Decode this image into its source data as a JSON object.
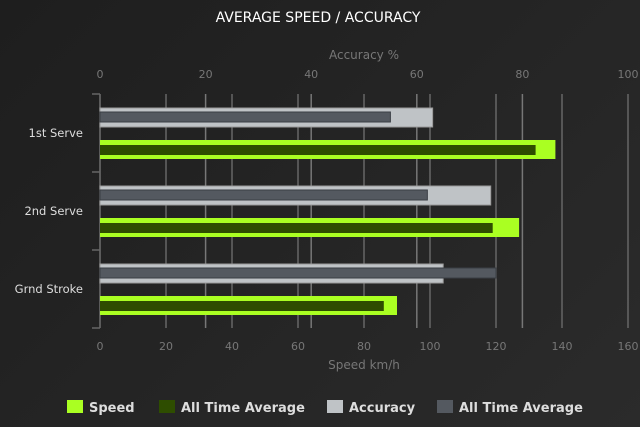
{
  "chart_data": {
    "type": "bar",
    "orientation": "horizontal",
    "title": "AVERAGE SPEED / ACCURACY",
    "categories": [
      "1st Serve",
      "2nd Serve",
      "Grnd Stroke"
    ],
    "x_bottom": {
      "label": "Speed km/h",
      "range": [
        0,
        160
      ],
      "ticks": [
        0,
        20,
        40,
        60,
        80,
        100,
        120,
        140,
        160
      ]
    },
    "x_top": {
      "label": "Accuracy %",
      "range": [
        0,
        100
      ],
      "ticks": [
        0,
        20,
        40,
        60,
        80,
        100
      ]
    },
    "grid": true,
    "legend_position": "bottom",
    "series": [
      {
        "name": "Speed",
        "axis": "speed",
        "color": "#aaff22",
        "values": [
          138,
          127,
          90
        ]
      },
      {
        "name": "All Time Average",
        "axis": "speed",
        "color": "#2e4d00",
        "values": [
          132,
          119,
          86
        ]
      },
      {
        "name": "Accuracy",
        "axis": "accuracy",
        "color": "#bfc3c6",
        "values": [
          63,
          74,
          65
        ]
      },
      {
        "name": "All Time Average",
        "axis": "accuracy",
        "color": "#545960",
        "values": [
          55,
          62,
          75
        ]
      }
    ]
  }
}
